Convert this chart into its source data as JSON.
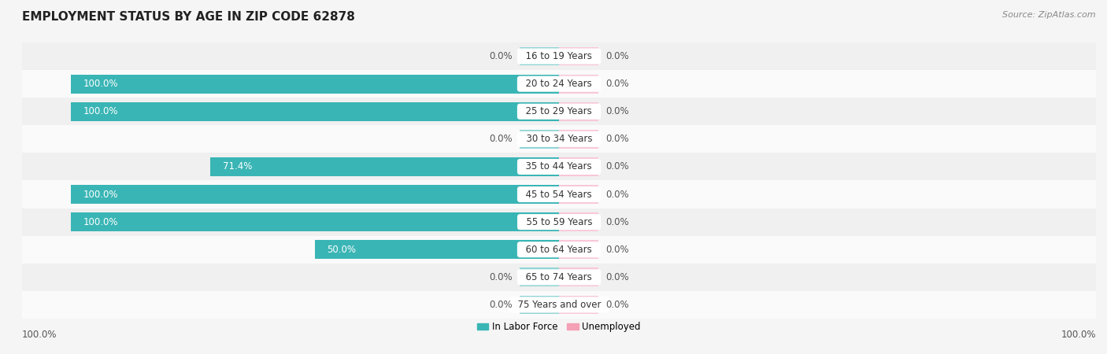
{
  "title": "EMPLOYMENT STATUS BY AGE IN ZIP CODE 62878",
  "source": "Source: ZipAtlas.com",
  "categories": [
    "16 to 19 Years",
    "20 to 24 Years",
    "25 to 29 Years",
    "30 to 34 Years",
    "35 to 44 Years",
    "45 to 54 Years",
    "55 to 59 Years",
    "60 to 64 Years",
    "65 to 74 Years",
    "75 Years and over"
  ],
  "labor_force": [
    0.0,
    100.0,
    100.0,
    0.0,
    71.4,
    100.0,
    100.0,
    50.0,
    0.0,
    0.0
  ],
  "unemployed": [
    0.0,
    0.0,
    0.0,
    0.0,
    0.0,
    0.0,
    0.0,
    0.0,
    0.0,
    0.0
  ],
  "labor_color": "#3ab5b5",
  "labor_stub_color": "#93d5d5",
  "unemployed_color": "#f4a0b5",
  "unemployed_stub_color": "#f8c8d8",
  "row_bg_light": "#f0f0f0",
  "row_bg_white": "#fafafa",
  "bg_color": "#f5f5f5",
  "axis_label_left": "100.0%",
  "axis_label_right": "100.0%",
  "legend_labor": "In Labor Force",
  "legend_unemployed": "Unemployed",
  "title_fontsize": 11,
  "source_fontsize": 8,
  "label_fontsize": 8.5,
  "bar_label_fontsize": 8.5,
  "cat_label_fontsize": 8.5,
  "stub_size": 8.0
}
